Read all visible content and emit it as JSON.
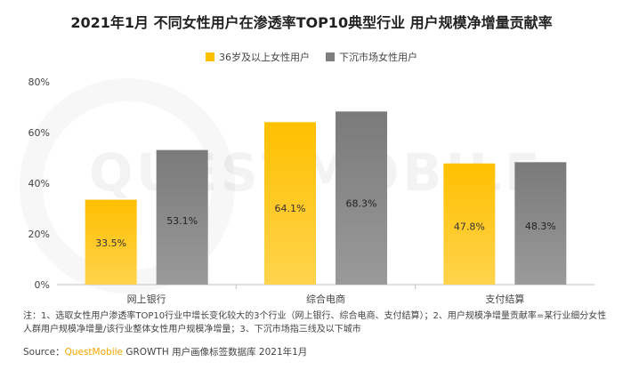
{
  "title": "2021年1月 不同女性用户在渗透率TOP10典型行业 用户规模净增量贡献率",
  "legend": [
    {
      "label": "36岁及以上女性用户",
      "color": "#ffc000"
    },
    {
      "label": "下沉市场女性用户",
      "color": "#7f7f7f"
    }
  ],
  "watermark": "QUESTMOBILE",
  "chart_data": {
    "type": "bar",
    "categories": [
      "网上银行",
      "综合电商",
      "支付结算"
    ],
    "series": [
      {
        "name": "36岁及以上女性用户",
        "values": [
          33.5,
          64.1,
          47.8
        ],
        "labels": [
          "33.5%",
          "64.1%",
          "47.8%"
        ],
        "color": "#ffc000"
      },
      {
        "name": "下沉市场女性用户",
        "values": [
          53.1,
          68.3,
          48.3
        ],
        "labels": [
          "53.1%",
          "68.3%",
          "48.3%"
        ],
        "color": "#7f7f7f"
      }
    ],
    "yticks": [
      "0%",
      "20%",
      "40%",
      "60%",
      "80%"
    ],
    "ylim": [
      0,
      80
    ],
    "grid": false,
    "legend_position": "top-center"
  },
  "note": "注：1、选取女性用户渗透率TOP10行业中增长变化较大的3个行业（网上银行、综合电商、支付结算）；2、用户规模净增量贡献率=某行业细分女性人群用户规模净增量/该行业整体女性用户规模净增量；3、下沉市场指三线及以下城市",
  "source": {
    "prefix": "Source：",
    "brand": "QuestMobile",
    "rest": " GROWTH 用户画像标签数据库 2021年1月"
  }
}
